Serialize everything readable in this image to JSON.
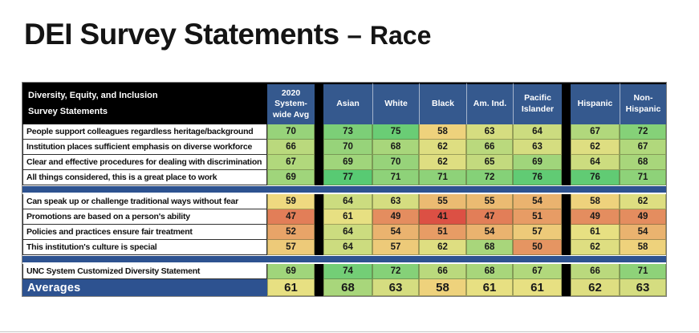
{
  "title": {
    "main": "DEI Survey Statements",
    "separator": "–",
    "suffix": "Race"
  },
  "colors": {
    "header_navy": "#35598e",
    "separator_navy": "#2d5290",
    "header_black": "#000000",
    "title_text": "#141414",
    "page_background": "#ffffff"
  },
  "chart_data": {
    "type": "heatmap",
    "title": "DEI Survey Statements – Race",
    "corner_header": [
      "Diversity, Equity, and Inclusion",
      "Survey Statements"
    ],
    "columns": [
      "2020 System-wide Avg",
      "Asian",
      "White",
      "Black",
      "Am. Ind.",
      "Pacific Islander",
      "Hispanic",
      "Non-Hispanic"
    ],
    "sections": [
      {
        "rows": [
          {
            "label": "People support colleagues regardless heritage/background",
            "values": [
              70,
              73,
              75,
              58,
              63,
              64,
              67,
              72
            ]
          },
          {
            "label": "Institution places sufficient emphasis on diverse workforce",
            "values": [
              66,
              70,
              68,
              62,
              66,
              63,
              62,
              67
            ]
          },
          {
            "label": "Clear and effective procedures for dealing with discrimination",
            "values": [
              67,
              69,
              70,
              62,
              65,
              69,
              64,
              68
            ]
          },
          {
            "label": "All things considered, this is a great place to work",
            "values": [
              69,
              77,
              71,
              71,
              72,
              76,
              76,
              71
            ]
          }
        ]
      },
      {
        "rows": [
          {
            "label": "Can speak up or challenge traditional ways without fear",
            "values": [
              59,
              64,
              63,
              55,
              55,
              54,
              58,
              62
            ]
          },
          {
            "label": "Promotions are based on a person's ability",
            "values": [
              47,
              61,
              49,
              41,
              47,
              51,
              49,
              49
            ]
          },
          {
            "label": "Policies and practices ensure fair treatment",
            "values": [
              52,
              64,
              54,
              51,
              54,
              57,
              61,
              54
            ]
          },
          {
            "label": "This institution's culture is special",
            "values": [
              57,
              64,
              57,
              62,
              68,
              50,
              62,
              58
            ]
          }
        ]
      },
      {
        "rows": [
          {
            "label": "UNC System Customized Diversity Statement",
            "values": [
              69,
              74,
              72,
              66,
              68,
              67,
              66,
              71
            ]
          }
        ]
      }
    ],
    "averages": {
      "label": "Averages",
      "values": [
        61,
        68,
        63,
        58,
        61,
        61,
        62,
        63
      ]
    },
    "color_scale": {
      "type": "red-yellow-green",
      "low": "#dc5044",
      "mid": "#f0e183",
      "high": "#58ca73",
      "domain": [
        41,
        60,
        77
      ]
    }
  }
}
